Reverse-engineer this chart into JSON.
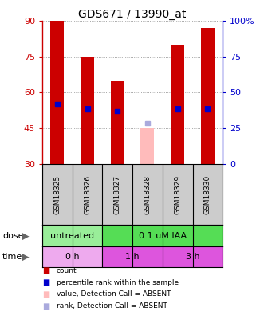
{
  "title": "GDS671 / 13990_at",
  "samples": [
    "GSM18325",
    "GSM18326",
    "GSM18327",
    "GSM18328",
    "GSM18329",
    "GSM18330"
  ],
  "bar_values": [
    90,
    75,
    65,
    null,
    80,
    87
  ],
  "bar_color": "#cc0000",
  "absent_bar_value": 45,
  "absent_bar_color": "#ffbbbb",
  "rank_values": [
    55,
    53,
    52,
    null,
    53,
    53
  ],
  "rank_color": "#0000cc",
  "absent_rank_value": 47,
  "absent_rank_color": "#aaaadd",
  "left_ylim": [
    30,
    90
  ],
  "left_yticks": [
    30,
    45,
    60,
    75,
    90
  ],
  "right_ylim": [
    0,
    100
  ],
  "right_yticks": [
    0,
    25,
    50,
    75,
    100
  ],
  "right_yticklabels": [
    "0",
    "25",
    "50",
    "75",
    "100%"
  ],
  "left_tick_color": "#cc0000",
  "right_tick_color": "#0000cc",
  "dose_labels": [
    {
      "text": "untreated",
      "start": 0,
      "end": 2,
      "color": "#99ee99"
    },
    {
      "text": "0.1 uM IAA",
      "start": 2,
      "end": 6,
      "color": "#55dd55"
    }
  ],
  "time_labels": [
    {
      "text": "0 h",
      "start": 0,
      "end": 2,
      "color": "#eeaaee"
    },
    {
      "text": "1 h",
      "start": 2,
      "end": 4,
      "color": "#dd55dd"
    },
    {
      "text": "3 h",
      "start": 4,
      "end": 6,
      "color": "#dd55dd"
    }
  ],
  "dose_row_label": "dose",
  "time_row_label": "time",
  "legend_items": [
    {
      "label": "count",
      "color": "#cc0000"
    },
    {
      "label": "percentile rank within the sample",
      "color": "#0000cc"
    },
    {
      "label": "value, Detection Call = ABSENT",
      "color": "#ffbbbb"
    },
    {
      "label": "rank, Detection Call = ABSENT",
      "color": "#aaaadd"
    }
  ],
  "grid_color": "#888888",
  "background_color": "#ffffff",
  "bar_width": 0.45,
  "absent_sample_idx": 3,
  "sample_label_bg": "#cccccc"
}
